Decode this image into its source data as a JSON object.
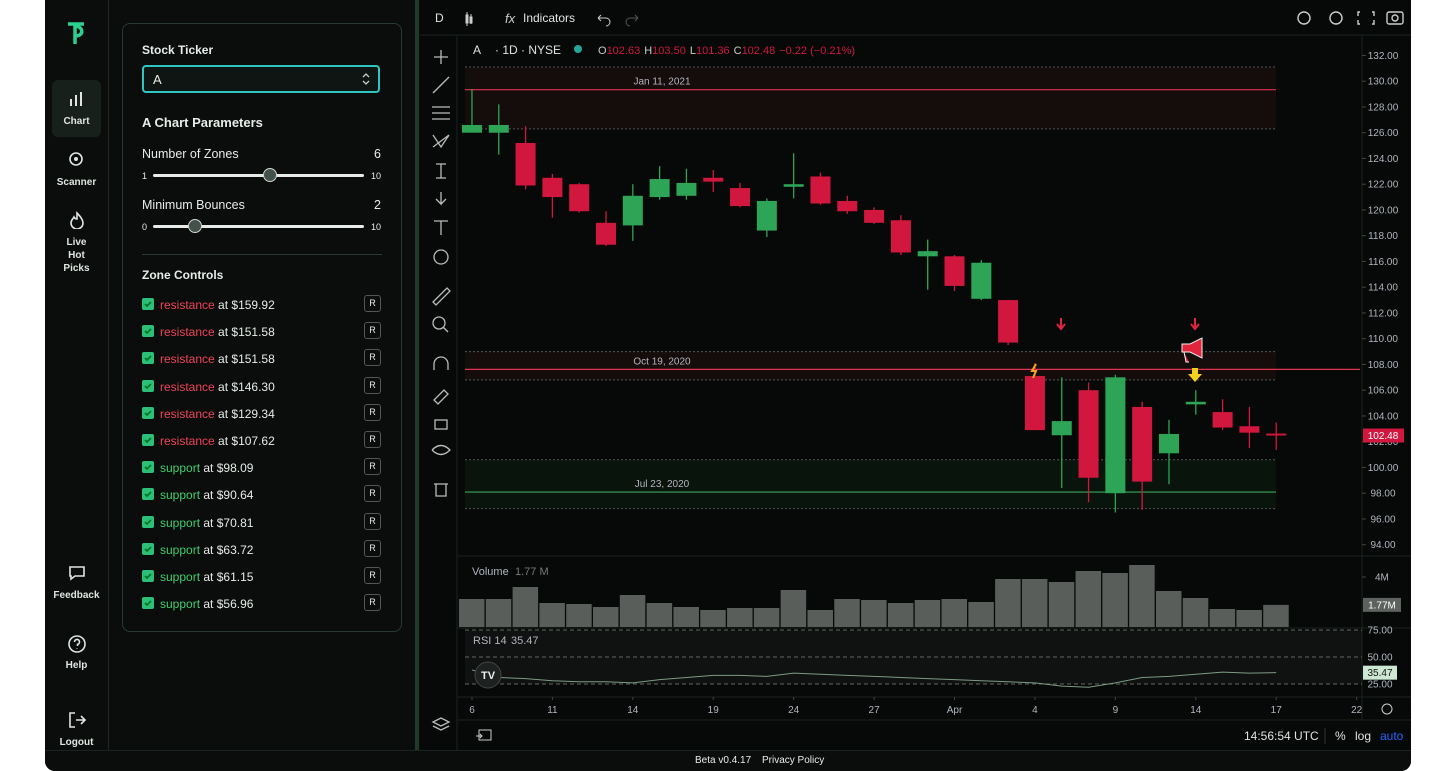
{
  "nav": {
    "items": [
      "Chart",
      "Scanner",
      "Live Hot Picks",
      "Feedback",
      "Help",
      "Logout"
    ]
  },
  "panel": {
    "ticker_label": "Stock Ticker",
    "ticker_value": "A",
    "params_title": "A Chart Parameters",
    "sliders": [
      {
        "label": "Number of Zones",
        "value": 6,
        "min": 1,
        "max": 10
      },
      {
        "label": "Minimum Bounces",
        "value": 2,
        "min": 0,
        "max": 10
      }
    ],
    "zones_title": "Zone Controls",
    "zone_button": "R",
    "zones": [
      {
        "kind": "resistance",
        "label": "at $159.92"
      },
      {
        "kind": "resistance",
        "label": "at $151.58"
      },
      {
        "kind": "resistance",
        "label": "at $151.58"
      },
      {
        "kind": "resistance",
        "label": "at $146.30"
      },
      {
        "kind": "resistance",
        "label": "at $129.34"
      },
      {
        "kind": "resistance",
        "label": "at $107.62"
      },
      {
        "kind": "support",
        "label": "at $98.09"
      },
      {
        "kind": "support",
        "label": "at $90.64"
      },
      {
        "kind": "support",
        "label": "at $70.81"
      },
      {
        "kind": "support",
        "label": "at $63.72"
      },
      {
        "kind": "support",
        "label": "at $61.15"
      },
      {
        "kind": "support",
        "label": "at $56.96"
      }
    ]
  },
  "toolbar": {
    "interval": "D",
    "indicators": "Indicators"
  },
  "chart_data": {
    "type": "candlestick",
    "symbol": "A",
    "meta": "· 1D · NYSE",
    "ohlc_labels": [
      "O",
      "H",
      "L",
      "C"
    ],
    "ohlc_values": [
      102.63,
      103.5,
      101.36,
      102.48
    ],
    "ohlc_value_labels": [
      "102.63",
      "103.50",
      "101.36",
      "102.48"
    ],
    "change": "−0.22 (−0.21%)",
    "up_color": "#2ea556",
    "down_color": "#d2173f",
    "x": [
      0,
      1,
      2,
      3,
      4,
      5,
      6,
      7,
      8,
      9,
      10,
      11,
      12,
      13,
      14,
      15,
      16,
      17,
      18,
      19,
      20,
      21,
      22,
      23,
      24,
      25,
      26,
      27,
      28,
      29,
      30
    ],
    "open": [
      126.0,
      126.0,
      125.2,
      122.5,
      122.0,
      119.0,
      118.8,
      121.0,
      121.1,
      122.5,
      121.7,
      118.4,
      121.8,
      122.6,
      120.7,
      120.0,
      119.2,
      116.4,
      116.4,
      113.1,
      113.0,
      107.1,
      102.5,
      106.0,
      98.0,
      104.7,
      101.1,
      104.9,
      104.3,
      103.2,
      102.63
    ],
    "high": [
      129.4,
      128.2,
      126.5,
      122.8,
      122.1,
      119.9,
      122.0,
      123.4,
      123.2,
      123.1,
      122.1,
      120.9,
      124.4,
      122.9,
      121.1,
      120.2,
      119.6,
      117.7,
      116.5,
      116.1,
      113.0,
      108.1,
      107.0,
      106.6,
      107.2,
      105.1,
      103.7,
      106.0,
      105.3,
      104.7,
      103.5
    ],
    "low": [
      126.0,
      124.3,
      121.6,
      119.4,
      119.8,
      117.2,
      117.6,
      120.8,
      120.8,
      121.4,
      120.2,
      117.9,
      120.9,
      120.4,
      119.7,
      118.9,
      116.5,
      113.8,
      113.7,
      113.0,
      109.5,
      102.9,
      98.4,
      97.3,
      96.5,
      96.7,
      98.7,
      104.1,
      102.9,
      101.5,
      101.36
    ],
    "close": [
      126.6,
      126.6,
      121.9,
      121.0,
      119.9,
      117.3,
      121.1,
      122.4,
      122.1,
      122.2,
      120.3,
      120.7,
      122.0,
      120.5,
      119.9,
      119.0,
      116.7,
      116.8,
      114.1,
      115.9,
      109.7,
      102.9,
      103.6,
      99.2,
      107.0,
      98.9,
      102.6,
      105.1,
      103.1,
      102.7,
      102.48
    ],
    "xlim": [
      -0.26,
      33.2
    ],
    "xticks": [
      {
        "value": 0,
        "label": "6"
      },
      {
        "value": 3,
        "label": "11"
      },
      {
        "value": 6,
        "label": "14"
      },
      {
        "value": 9,
        "label": "19"
      },
      {
        "value": 12,
        "label": "24"
      },
      {
        "value": 15,
        "label": "27"
      },
      {
        "value": 18,
        "label": "Apr"
      },
      {
        "value": 21,
        "label": "4"
      },
      {
        "value": 24,
        "label": "9"
      },
      {
        "value": 27,
        "label": "14"
      },
      {
        "value": 30,
        "label": "17"
      },
      {
        "value": 33,
        "label": "22"
      }
    ],
    "ylim": [
      93.2,
      133.2
    ],
    "yticks": [
      {
        "value": 94,
        "label": "94.00"
      },
      {
        "value": 96,
        "label": "96.00"
      },
      {
        "value": 98,
        "label": "98.00"
      },
      {
        "value": 100,
        "label": "100.00"
      },
      {
        "value": 102,
        "label": "102.00"
      },
      {
        "value": 104,
        "label": "104.00"
      },
      {
        "value": 106,
        "label": "106.00"
      },
      {
        "value": 108,
        "label": "108.00"
      },
      {
        "value": 110,
        "label": "110.00"
      },
      {
        "value": 112,
        "label": "112.00"
      },
      {
        "value": 114,
        "label": "114.00"
      },
      {
        "value": 116,
        "label": "116.00"
      },
      {
        "value": 118,
        "label": "118.00"
      },
      {
        "value": 120,
        "label": "120.00"
      },
      {
        "value": 122,
        "label": "122.00"
      },
      {
        "value": 124,
        "label": "124.00"
      },
      {
        "value": 126,
        "label": "126.00"
      },
      {
        "value": 128,
        "label": "128.00"
      },
      {
        "value": 130,
        "label": "130.00"
      },
      {
        "value": 132,
        "label": "132.00"
      }
    ],
    "zones": [
      {
        "label": "Jan 11, 2021",
        "price": 129.34,
        "band": [
          126.3,
          131.1
        ],
        "color": "#e0334f"
      },
      {
        "label": "Oct 19, 2020",
        "price": 107.62,
        "band": [
          106.8,
          109.0
        ],
        "color": "#e0334f"
      },
      {
        "label": "Jul 23, 2020",
        "price": 98.09,
        "band": [
          96.8,
          100.6
        ],
        "color": "#3fa55c"
      }
    ],
    "volume": {
      "title": "Volume",
      "legend_value": "1.77 M",
      "last_label": "1.77M",
      "color": "#595e5a",
      "ylim": [
        0,
        5.6
      ],
      "yticks": [
        {
          "value": 4,
          "label": "4M"
        }
      ],
      "values": [
        2.24,
        2.24,
        3.2,
        1.92,
        1.84,
        1.6,
        2.56,
        1.92,
        1.6,
        1.36,
        1.52,
        1.52,
        2.96,
        1.36,
        2.24,
        2.16,
        1.92,
        2.16,
        2.24,
        2.0,
        3.84,
        3.84,
        3.6,
        4.48,
        4.32,
        4.96,
        2.88,
        2.32,
        1.44,
        1.36,
        1.77
      ]
    },
    "rsi": {
      "title": "RSI 14",
      "color": "#7f9a86",
      "ylim": [
        19.4,
        76.9
      ],
      "yticks": [
        {
          "value": 75,
          "label": "75.00"
        },
        {
          "value": 50,
          "label": "50.00"
        },
        {
          "value": 25,
          "label": "25.00"
        }
      ],
      "values": [
        38,
        31,
        30,
        28,
        27,
        27,
        26,
        29,
        31,
        33,
        33,
        32,
        35,
        34,
        33,
        32,
        31,
        30,
        29,
        28,
        27,
        26,
        23,
        22,
        26,
        31,
        32,
        34,
        36,
        35,
        35.47
      ]
    }
  },
  "status": {
    "time": "14:56:54 UTC",
    "percent": "%",
    "log": "log",
    "auto": "auto"
  },
  "footer": {
    "version": "Beta v0.4.17",
    "privacy": "Privacy Policy"
  }
}
